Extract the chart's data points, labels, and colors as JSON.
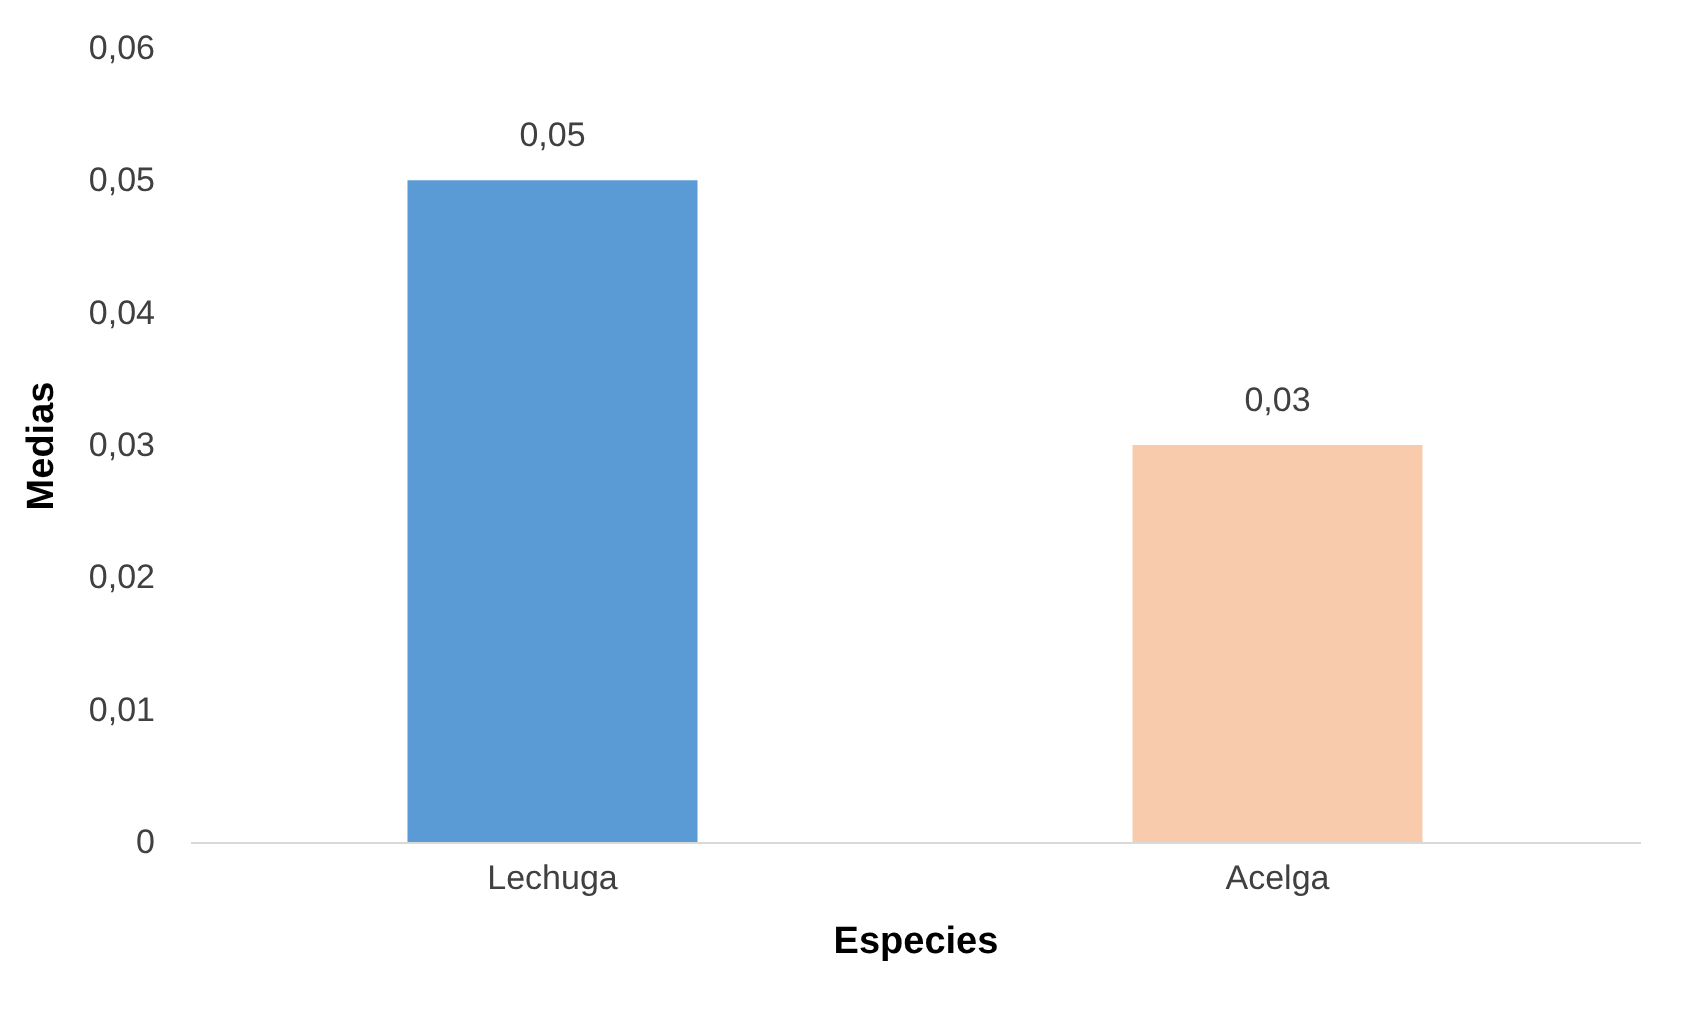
{
  "chart_data": {
    "type": "bar",
    "xlabel": "Especies",
    "ylabel": "Medias",
    "categories": [
      "Lechuga",
      "Acelga"
    ],
    "values": [
      0.05,
      0.03
    ],
    "colors": [
      "#5b9bd5",
      "#f8cbad"
    ],
    "value_labels": [
      "0,05",
      "0,03"
    ],
    "ylim": [
      0,
      0.06
    ],
    "yticks": [
      0,
      {
        "value": 0.01,
        "label": "0,01"
      },
      {
        "value": 0.02,
        "label": "0,02"
      },
      {
        "value": 0.03,
        "label": "0,03"
      },
      {
        "value": 0.04,
        "label": "0,04"
      },
      {
        "value": 0.05,
        "label": "0,05"
      },
      {
        "value": 0.06,
        "label": "0,06"
      }
    ],
    "grid": false
  }
}
